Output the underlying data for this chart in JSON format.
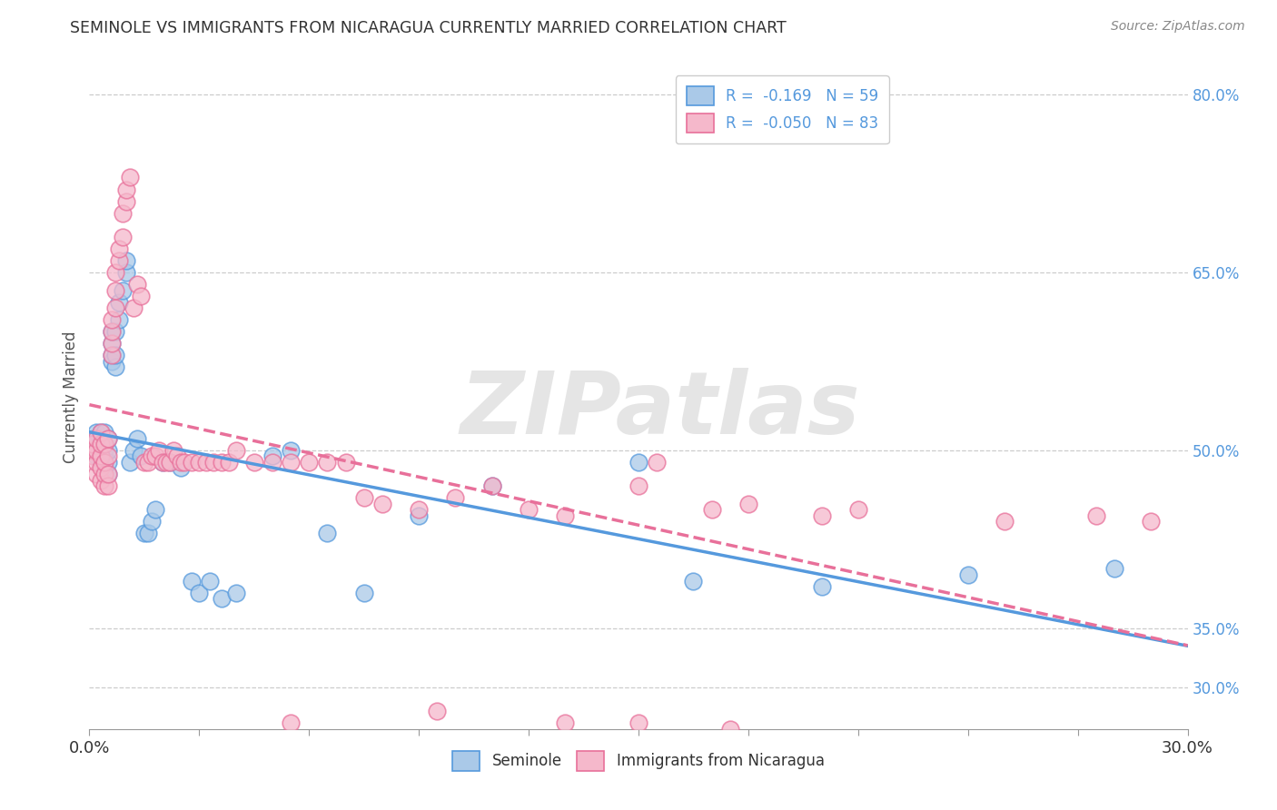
{
  "title": "SEMINOLE VS IMMIGRANTS FROM NICARAGUA CURRENTLY MARRIED CORRELATION CHART",
  "source": "Source: ZipAtlas.com",
  "ylabel": "Currently Married",
  "ylabel_right_labels": [
    "30.0%",
    "35.0%",
    "50.0%",
    "65.0%",
    "80.0%"
  ],
  "ylabel_right_positions": [
    0.3,
    0.35,
    0.5,
    0.65,
    0.8
  ],
  "legend_label1": "Seminole",
  "legend_label2": "Immigrants from Nicaragua",
  "r1": -0.169,
  "n1": 59,
  "r2": -0.05,
  "n2": 83,
  "color1": "#aac9e8",
  "color2": "#f5b8cb",
  "line_color1": "#5599dd",
  "line_color2": "#e8709a",
  "watermark": "ZIPatlas",
  "xmin": 0.0,
  "xmax": 0.3,
  "ymin": 0.265,
  "ymax": 0.825,
  "background_color": "#ffffff",
  "grid_color": "#cccccc",
  "seminole_x": [
    0.001,
    0.001,
    0.002,
    0.002,
    0.002,
    0.002,
    0.003,
    0.003,
    0.003,
    0.003,
    0.003,
    0.004,
    0.004,
    0.004,
    0.004,
    0.004,
    0.005,
    0.005,
    0.005,
    0.005,
    0.006,
    0.006,
    0.006,
    0.006,
    0.007,
    0.007,
    0.007,
    0.008,
    0.008,
    0.009,
    0.01,
    0.01,
    0.011,
    0.012,
    0.013,
    0.014,
    0.015,
    0.016,
    0.017,
    0.018,
    0.02,
    0.022,
    0.025,
    0.028,
    0.03,
    0.033,
    0.036,
    0.04,
    0.05,
    0.055,
    0.065,
    0.075,
    0.09,
    0.11,
    0.15,
    0.165,
    0.2,
    0.24,
    0.28
  ],
  "seminole_y": [
    0.5,
    0.51,
    0.495,
    0.505,
    0.51,
    0.515,
    0.49,
    0.5,
    0.505,
    0.51,
    0.515,
    0.485,
    0.495,
    0.5,
    0.505,
    0.515,
    0.48,
    0.49,
    0.5,
    0.51,
    0.575,
    0.58,
    0.59,
    0.6,
    0.57,
    0.58,
    0.6,
    0.61,
    0.625,
    0.635,
    0.65,
    0.66,
    0.49,
    0.5,
    0.51,
    0.495,
    0.43,
    0.43,
    0.44,
    0.45,
    0.49,
    0.49,
    0.485,
    0.39,
    0.38,
    0.39,
    0.375,
    0.38,
    0.495,
    0.5,
    0.43,
    0.38,
    0.445,
    0.47,
    0.49,
    0.39,
    0.385,
    0.395,
    0.4
  ],
  "nicaragua_x": [
    0.001,
    0.001,
    0.001,
    0.002,
    0.002,
    0.002,
    0.002,
    0.003,
    0.003,
    0.003,
    0.003,
    0.003,
    0.004,
    0.004,
    0.004,
    0.004,
    0.005,
    0.005,
    0.005,
    0.005,
    0.006,
    0.006,
    0.006,
    0.006,
    0.007,
    0.007,
    0.007,
    0.008,
    0.008,
    0.009,
    0.009,
    0.01,
    0.01,
    0.011,
    0.012,
    0.013,
    0.014,
    0.015,
    0.016,
    0.017,
    0.018,
    0.019,
    0.02,
    0.021,
    0.022,
    0.023,
    0.024,
    0.025,
    0.026,
    0.028,
    0.03,
    0.032,
    0.034,
    0.036,
    0.038,
    0.04,
    0.045,
    0.05,
    0.055,
    0.06,
    0.065,
    0.07,
    0.075,
    0.08,
    0.09,
    0.1,
    0.11,
    0.12,
    0.13,
    0.15,
    0.155,
    0.17,
    0.18,
    0.2,
    0.21,
    0.25,
    0.275,
    0.29,
    0.15,
    0.175,
    0.13,
    0.095,
    0.055
  ],
  "nicaragua_y": [
    0.495,
    0.5,
    0.505,
    0.48,
    0.49,
    0.5,
    0.51,
    0.475,
    0.485,
    0.495,
    0.505,
    0.515,
    0.47,
    0.48,
    0.49,
    0.505,
    0.47,
    0.48,
    0.495,
    0.51,
    0.58,
    0.59,
    0.6,
    0.61,
    0.62,
    0.635,
    0.65,
    0.66,
    0.67,
    0.68,
    0.7,
    0.71,
    0.72,
    0.73,
    0.62,
    0.64,
    0.63,
    0.49,
    0.49,
    0.495,
    0.495,
    0.5,
    0.49,
    0.49,
    0.49,
    0.5,
    0.495,
    0.49,
    0.49,
    0.49,
    0.49,
    0.49,
    0.49,
    0.49,
    0.49,
    0.5,
    0.49,
    0.49,
    0.49,
    0.49,
    0.49,
    0.49,
    0.46,
    0.455,
    0.45,
    0.46,
    0.47,
    0.45,
    0.445,
    0.47,
    0.49,
    0.45,
    0.455,
    0.445,
    0.45,
    0.44,
    0.445,
    0.44,
    0.27,
    0.265,
    0.27,
    0.28,
    0.27
  ]
}
